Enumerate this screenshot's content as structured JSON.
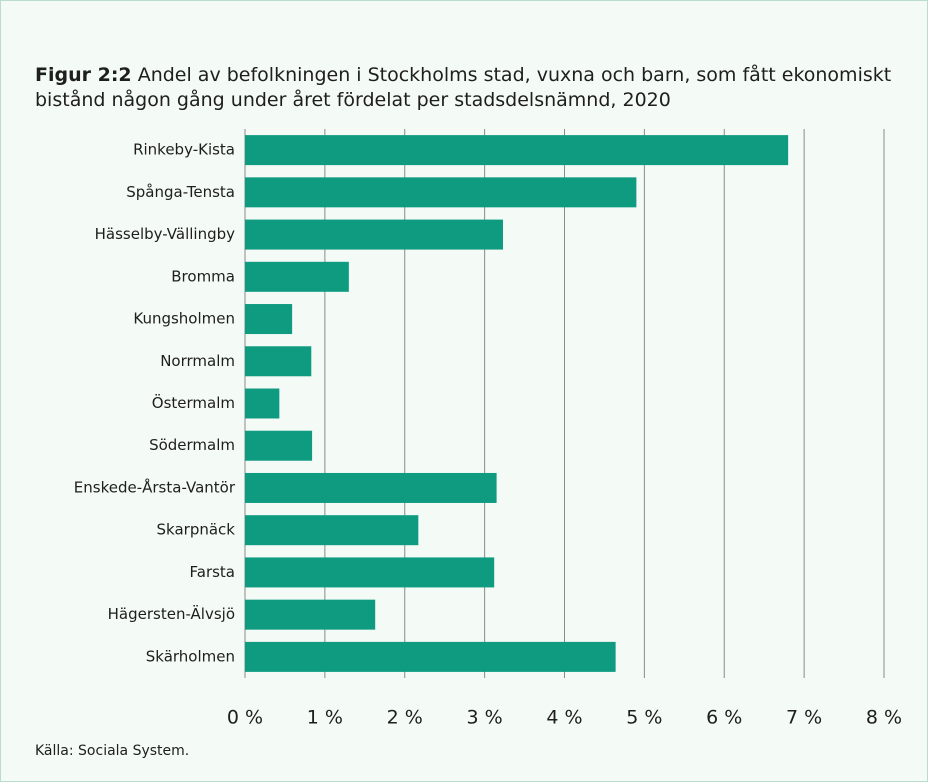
{
  "chart_data": {
    "type": "bar",
    "orientation": "horizontal",
    "title_label": "Figur 2:2",
    "title": "Andel av befolkningen i Stockholms stad, vuxna och barn, som fått ekonomiskt bistånd någon gång under året fördelat per stadsdelsnämnd, 2020",
    "categories": [
      "Rinkeby-Kista",
      "Spånga-Tensta",
      "Hässelby-Vällingby",
      "Bromma",
      "Kungsholmen",
      "Norrmalm",
      "Östermalm",
      "Södermalm",
      "Enskede-Årsta-Vantör",
      "Skarpnäck",
      "Farsta",
      "Hägersten-Älvsjö",
      "Skärholmen"
    ],
    "values": [
      6.8,
      4.9,
      3.23,
      1.3,
      0.59,
      0.83,
      0.43,
      0.84,
      3.15,
      2.17,
      3.12,
      1.63,
      4.64
    ],
    "color": "#0f9b80",
    "xlim": [
      0,
      8
    ],
    "xticks": [
      {
        "value": 0,
        "label": "0 %"
      },
      {
        "value": 1,
        "label": "1 %"
      },
      {
        "value": 2,
        "label": "2 %"
      },
      {
        "value": 3,
        "label": "3 %"
      },
      {
        "value": 4,
        "label": "4 %"
      },
      {
        "value": 5,
        "label": "5 %"
      },
      {
        "value": 6,
        "label": "6 %"
      },
      {
        "value": 7,
        "label": "7 %"
      },
      {
        "value": 8,
        "label": "8 %"
      }
    ],
    "grid": true,
    "source": "Källa: Sociala System."
  }
}
